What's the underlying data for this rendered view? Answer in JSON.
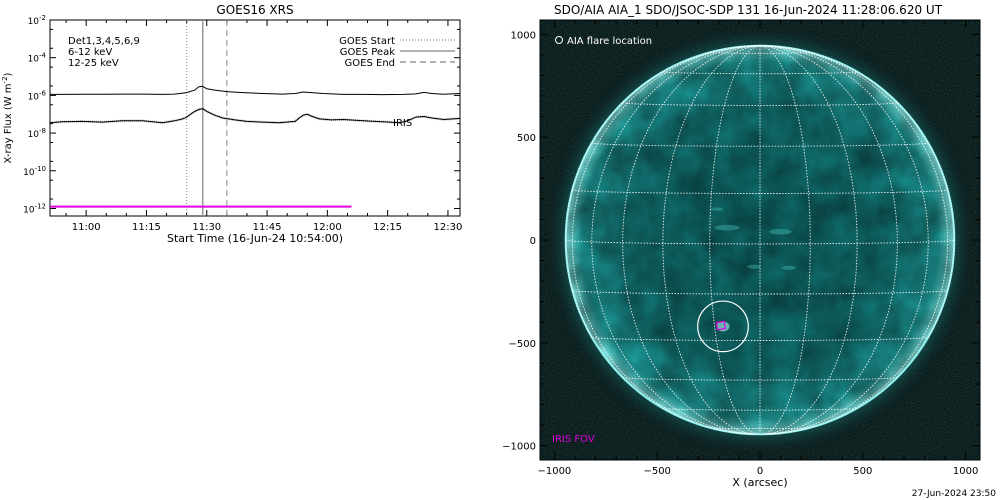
{
  "chart_data": [
    {
      "type": "line",
      "title": "GOES16 XRS",
      "xlabel": "Start Time (16-Jun-24 10:54:00)",
      "ylabel": "X-ray Flux (W m",
      "ylabel_exp": "-2",
      "ylabel_close": ")",
      "ylog": true,
      "ylim_exp": [
        -12.4,
        -2
      ],
      "xlim_min": [
        -3,
        99
      ],
      "x_ticks": [
        {
          "m": 6,
          "label": "11:00"
        },
        {
          "m": 21,
          "label": "11:15"
        },
        {
          "m": 36,
          "label": "11:30"
        },
        {
          "m": 51,
          "label": "11:45"
        },
        {
          "m": 66,
          "label": "12:00"
        },
        {
          "m": 81,
          "label": "12:15"
        },
        {
          "m": 96,
          "label": "12:30"
        }
      ],
      "y_ticks": [
        {
          "exp": -12,
          "base": "10",
          "sup": "-12"
        },
        {
          "exp": -10,
          "base": "10",
          "sup": "-10"
        },
        {
          "exp": -8,
          "base": "10",
          "sup": "-8"
        },
        {
          "exp": -6,
          "base": "10",
          "sup": "-6"
        },
        {
          "exp": -4,
          "base": "10",
          "sup": "-4"
        },
        {
          "exp": -2,
          "base": "10",
          "sup": "-2"
        }
      ],
      "legend_left": [
        {
          "label": "Det1,3,4,5,6,9",
          "color": "#000000"
        },
        {
          "label": "6-12 keV",
          "color": "#e000e0"
        },
        {
          "label": "12-25 keV",
          "color": "#00cc00"
        }
      ],
      "legend_right": [
        {
          "label": "GOES Start",
          "dash": "dotted"
        },
        {
          "label": "GOES Peak",
          "dash": "solid"
        },
        {
          "label": "GOES End",
          "dash": "dashed"
        }
      ],
      "legend_placement": "top-right",
      "event_lines_min": {
        "start": 31,
        "peak": 35,
        "end": 41
      },
      "iris_label": "IRIS",
      "series": [
        {
          "color": "#000000",
          "x": [
            -3,
            0,
            5,
            10,
            15,
            20,
            25,
            28,
            31,
            33,
            34,
            35,
            36,
            38,
            41,
            45,
            50,
            55,
            58,
            60,
            62,
            65,
            70,
            75,
            80,
            85,
            88,
            90,
            92,
            95,
            99
          ],
          "y_exp": [
            -5.95,
            -5.95,
            -5.94,
            -5.94,
            -5.93,
            -5.93,
            -5.95,
            -5.93,
            -5.85,
            -5.72,
            -5.55,
            -5.52,
            -5.65,
            -5.72,
            -5.8,
            -5.85,
            -5.9,
            -5.93,
            -5.9,
            -5.82,
            -5.85,
            -5.9,
            -5.95,
            -5.95,
            -5.96,
            -5.95,
            -5.92,
            -5.84,
            -5.9,
            -5.94,
            -5.9
          ]
        },
        {
          "color": "#000000",
          "x": [
            -3,
            0,
            5,
            10,
            15,
            20,
            25,
            28,
            30,
            31,
            32,
            33,
            34,
            35,
            36,
            38,
            40,
            43,
            46,
            50,
            54,
            58,
            59,
            60,
            61,
            62,
            64,
            67,
            70,
            75,
            80,
            84,
            86,
            88,
            90,
            92,
            95,
            99
          ],
          "y_exp": [
            -7.45,
            -7.4,
            -7.38,
            -7.42,
            -7.35,
            -7.35,
            -7.45,
            -7.35,
            -7.25,
            -7.15,
            -7.0,
            -6.85,
            -6.75,
            -6.7,
            -6.85,
            -7.05,
            -7.2,
            -7.3,
            -7.38,
            -7.42,
            -7.45,
            -7.38,
            -7.2,
            -7.05,
            -7.0,
            -7.1,
            -7.25,
            -7.3,
            -7.28,
            -7.35,
            -7.4,
            -7.45,
            -7.35,
            -7.15,
            -7.12,
            -7.2,
            -7.28,
            -7.22
          ]
        },
        {
          "color": "#e000e0",
          "x": [
            -3,
            72
          ],
          "y_exp": [
            -11.9,
            -11.9
          ]
        }
      ]
    },
    {
      "type": "image",
      "title": "SDO/AIA AIA_1 SDO/JSOC-SDP 131 16-Jun-2024 11:28:06.620 UT",
      "xlabel": "X (arcsec)",
      "xlim": [
        -1070,
        1070
      ],
      "ylim": [
        -1070,
        1070
      ],
      "x_ticks": [
        -1000,
        -500,
        0,
        500,
        1000
      ],
      "y_ticks": [
        -1000,
        -500,
        0,
        500,
        1000
      ],
      "grid": true,
      "sun_radius_arcsec": 945,
      "flare_location": {
        "x": -180,
        "y": -420,
        "r": 60
      },
      "iris_fov": {
        "x": -185,
        "y": -430,
        "size": 35
      },
      "flare_legend": "AIA flare location",
      "iris_legend": "IRIS FOV",
      "disk_color": "#168a8a",
      "limb_color": "#8ff2ee",
      "grid_color": "#ffffff",
      "iris_color": "#e000e0"
    }
  ],
  "footer_timestamp": "27-Jun-2024 23:50"
}
